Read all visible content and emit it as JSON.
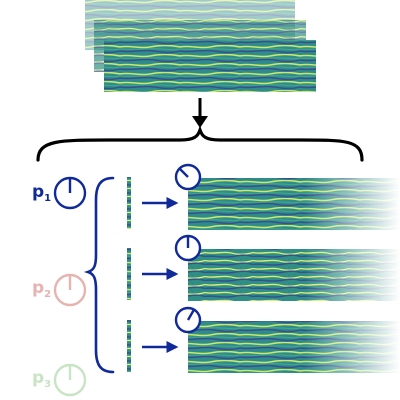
{
  "diagram": {
    "params": [
      {
        "name": "p",
        "sub": "1",
        "color": "#102a9a",
        "state": "active"
      },
      {
        "name": "p",
        "sub": "2",
        "color": "#e6b3b0",
        "state": "faded"
      },
      {
        "name": "p",
        "sub": "3",
        "color": "#c8e4c4",
        "state": "faded"
      }
    ],
    "dial_angles_deg": [
      -45,
      0,
      30
    ],
    "colors": {
      "navy": "#102a9a",
      "black": "#000000",
      "field_dark": "#2a5a8a",
      "field_mid": "#2f9a86",
      "field_bright": "#cce870"
    },
    "input_stack_count": 3,
    "output_row_count": 3
  }
}
